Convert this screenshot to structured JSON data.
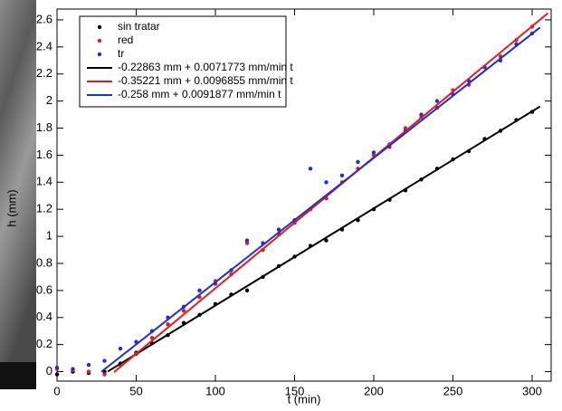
{
  "chart_data": {
    "type": "scatter",
    "x_label": "t (min)",
    "y_label": "h (mm)",
    "xlim": [
      0,
      312
    ],
    "ylim": [
      -0.07,
      2.68
    ],
    "xticks": [
      0,
      50,
      100,
      150,
      200,
      250,
      300
    ],
    "yticks": [
      0,
      0.2,
      0.4,
      0.6,
      0.8,
      1,
      1.2,
      1.4,
      1.6,
      1.8,
      2,
      2.2,
      2.4,
      2.6
    ],
    "legend": "upper-left",
    "series": [
      {
        "name": "sin tratar",
        "mode": "markers",
        "color": "#000000",
        "x": [
          0,
          10,
          20,
          30,
          40,
          50,
          60,
          70,
          80,
          90,
          100,
          110,
          120,
          130,
          140,
          150,
          160,
          170,
          180,
          190,
          200,
          210,
          220,
          230,
          240,
          250,
          260,
          270,
          280,
          290,
          300
        ],
        "values": [
          -0.02,
          0.0,
          -0.01,
          0.0,
          0.06,
          0.14,
          0.21,
          0.27,
          0.36,
          0.42,
          0.5,
          0.57,
          0.6,
          0.7,
          0.78,
          0.85,
          0.93,
          0.97,
          1.05,
          1.12,
          1.2,
          1.27,
          1.34,
          1.42,
          1.5,
          1.57,
          1.63,
          1.72,
          1.78,
          1.86,
          1.92
        ]
      },
      {
        "name": "red",
        "mode": "markers",
        "color": "#e8191c",
        "x": [
          0,
          10,
          20,
          30,
          40,
          50,
          60,
          70,
          80,
          90,
          100,
          110,
          120,
          130,
          140,
          150,
          160,
          170,
          180,
          190,
          200,
          210,
          220,
          230,
          240,
          250,
          260,
          270,
          280,
          290,
          300
        ],
        "values": [
          0.02,
          0.01,
          0.0,
          -0.02,
          0.05,
          0.13,
          0.25,
          0.35,
          0.45,
          0.55,
          0.67,
          0.72,
          0.95,
          0.9,
          1.02,
          1.1,
          1.2,
          1.28,
          1.4,
          1.5,
          1.6,
          1.66,
          1.8,
          1.88,
          1.95,
          2.08,
          2.12,
          2.25,
          2.33,
          2.45,
          2.55
        ]
      },
      {
        "name": "tr",
        "mode": "markers",
        "color": "#1f2fd6",
        "x": [
          0,
          10,
          20,
          30,
          40,
          50,
          60,
          70,
          80,
          90,
          100,
          110,
          120,
          130,
          140,
          150,
          160,
          170,
          180,
          190,
          200,
          210,
          220,
          230,
          240,
          250,
          260,
          270,
          280,
          290,
          300
        ],
        "values": [
          0.03,
          0.02,
          0.05,
          0.08,
          0.17,
          0.22,
          0.3,
          0.4,
          0.48,
          0.6,
          0.65,
          0.75,
          0.97,
          0.95,
          1.05,
          1.12,
          1.5,
          1.4,
          1.45,
          1.55,
          1.62,
          1.68,
          1.78,
          1.9,
          2.0,
          2.05,
          2.15,
          2.25,
          2.3,
          2.42,
          2.5
        ]
      },
      {
        "name": "-0.22863 mm + 0.0071773 mm/min t",
        "mode": "line",
        "color": "#000000",
        "x": [
          32,
          305
        ],
        "values": [
          0.001,
          1.96
        ]
      },
      {
        "name": "-0.35221 mm + 0.0096855 mm/min t",
        "mode": "line",
        "color": "#e8191c",
        "x": [
          36,
          310
        ],
        "values": [
          -0.0035,
          2.65
        ]
      },
      {
        "name": "-0.258 mm + 0.0091877 mm/min t",
        "mode": "line",
        "color": "#1f2fd6",
        "x": [
          28,
          305
        ],
        "values": [
          -0.0007,
          2.544
        ]
      }
    ]
  }
}
